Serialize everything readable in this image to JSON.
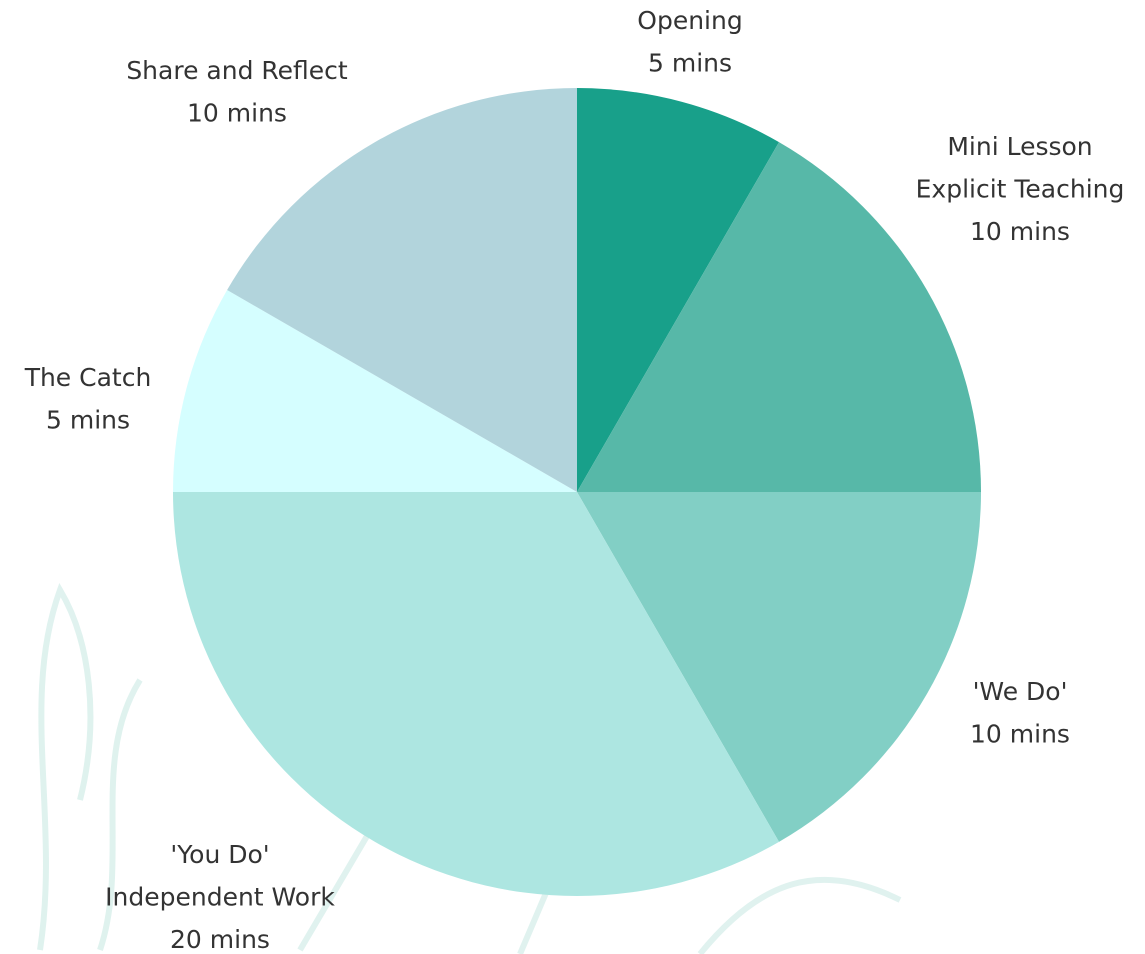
{
  "chart_data": {
    "type": "pie",
    "categories": [
      [
        "Opening"
      ],
      [
        "Mini Lesson",
        "Explicit Teaching"
      ],
      [
        "'We Do'"
      ],
      [
        "'You Do'",
        "Independent Work"
      ],
      [
        "The Catch"
      ],
      [
        "Share and Reflect"
      ]
    ],
    "values": [
      5,
      10,
      10,
      20,
      5,
      10
    ],
    "value_labels": [
      "5 mins",
      "10 mins",
      "10 mins",
      "20 mins",
      "5 mins",
      "10 mins"
    ],
    "colors": [
      "#18a08a",
      "#57b8a8",
      "#82cfc5",
      "#ade6e1",
      "#d5feff",
      "#b2d4dc"
    ]
  }
}
